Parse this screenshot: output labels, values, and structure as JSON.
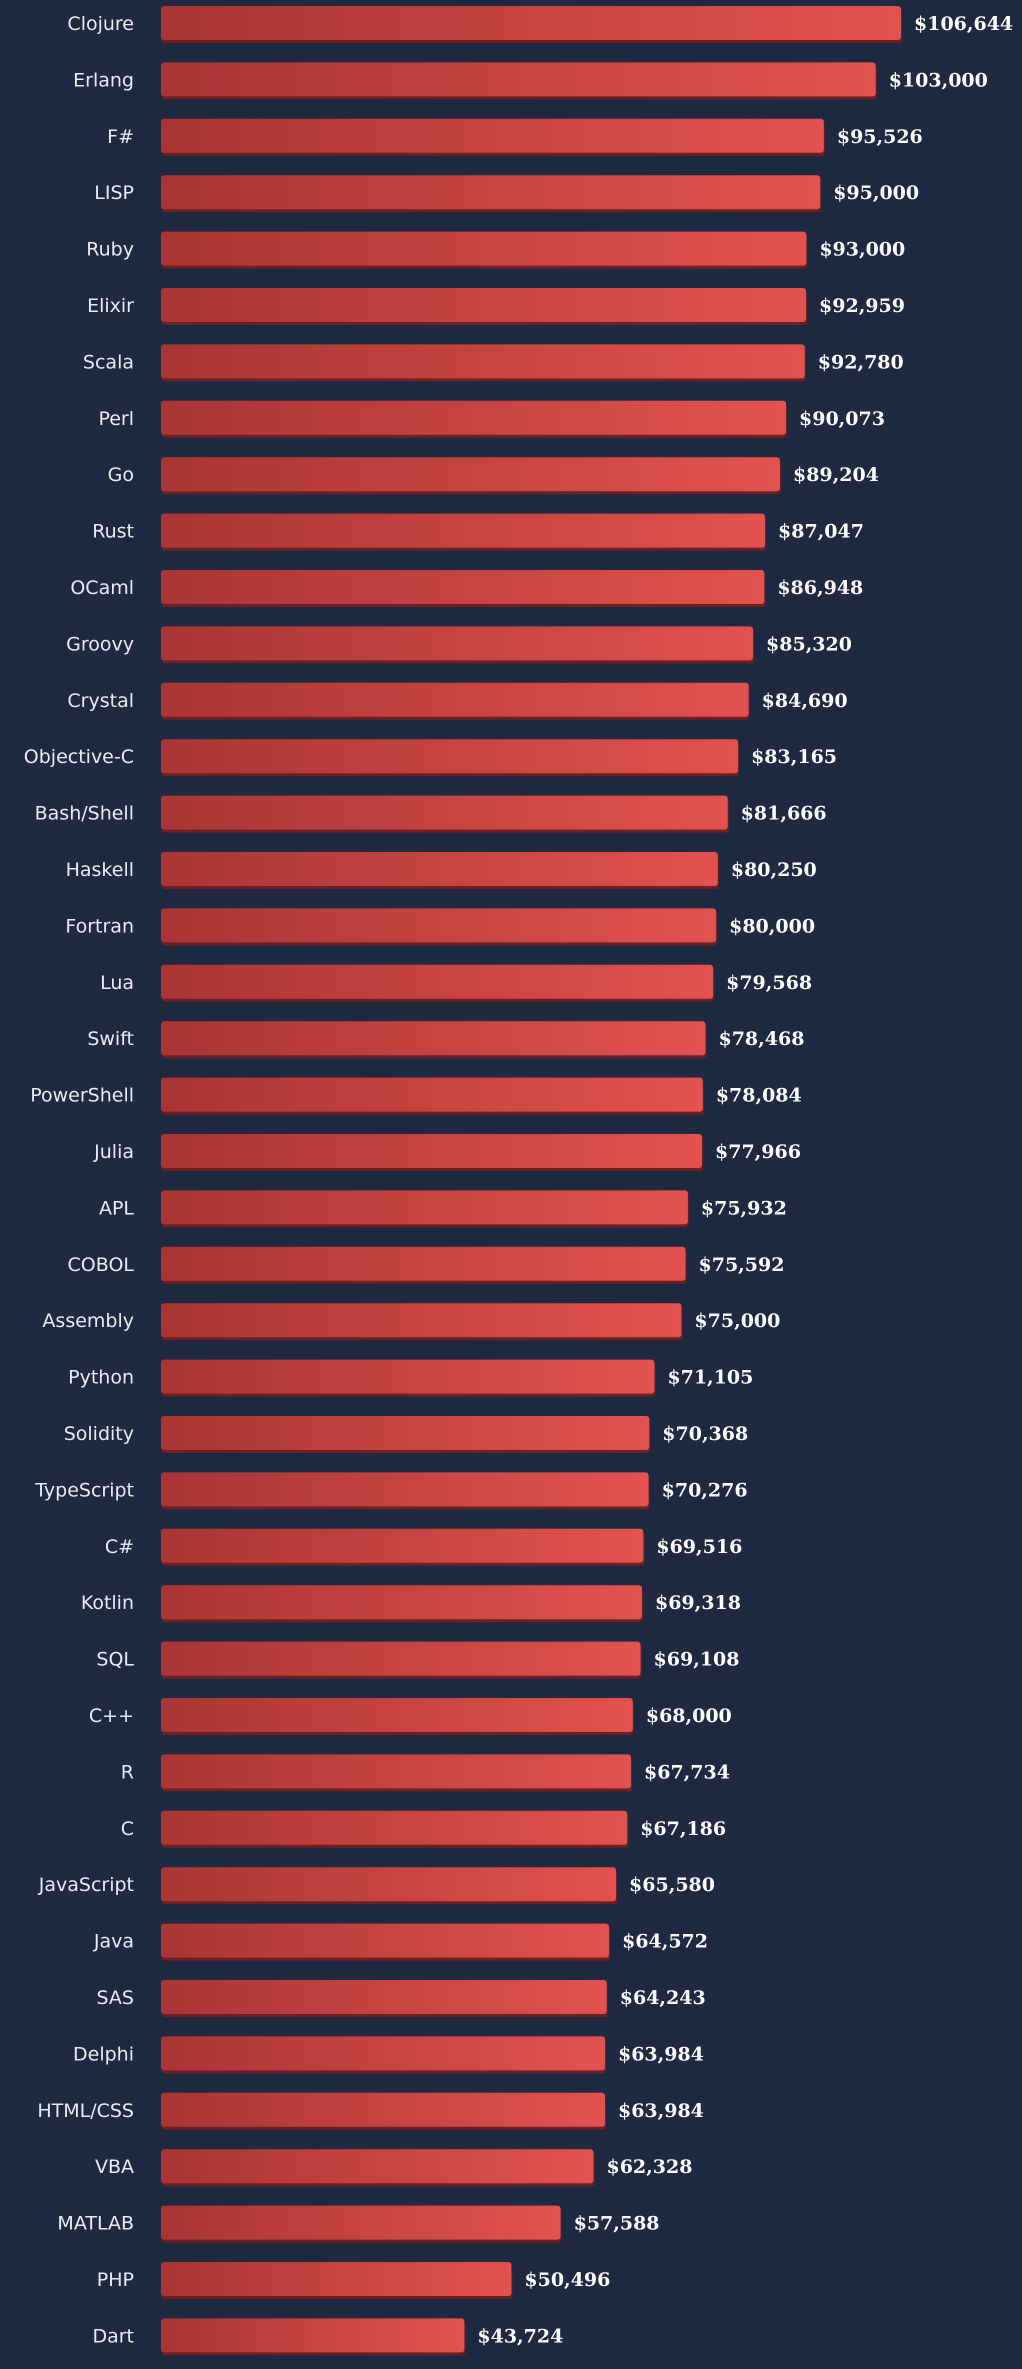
{
  "chart_data": {
    "type": "bar",
    "orientation": "horizontal",
    "value_prefix": "$",
    "categories": [
      "Clojure",
      "Erlang",
      "F#",
      "LISP",
      "Ruby",
      "Elixir",
      "Scala",
      "Perl",
      "Go",
      "Rust",
      "OCaml",
      "Groovy",
      "Crystal",
      "Objective-C",
      "Bash/Shell",
      "Haskell",
      "Fortran",
      "Lua",
      "Swift",
      "PowerShell",
      "Julia",
      "APL",
      "COBOL",
      "Assembly",
      "Python",
      "Solidity",
      "TypeScript",
      "C#",
      "Kotlin",
      "SQL",
      "C++",
      "R",
      "C",
      "JavaScript",
      "Java",
      "SAS",
      "Delphi",
      "HTML/CSS",
      "VBA",
      "MATLAB",
      "PHP",
      "Dart"
    ],
    "values": [
      106644,
      103000,
      95526,
      95000,
      93000,
      92959,
      92780,
      90073,
      89204,
      87047,
      86948,
      85320,
      84690,
      83165,
      81666,
      80250,
      80000,
      79568,
      78468,
      78084,
      77966,
      75932,
      75592,
      75000,
      71105,
      70368,
      70276,
      69516,
      69318,
      69108,
      68000,
      67734,
      67186,
      65580,
      64572,
      64243,
      63984,
      63984,
      62328,
      57588,
      50496,
      43724
    ],
    "value_labels": [
      "$106,644",
      "$103,000",
      "$95,526",
      "$95,000",
      "$93,000",
      "$92,959",
      "$92,780",
      "$90,073",
      "$89,204",
      "$87,047",
      "$86,948",
      "$85,320",
      "$84,690",
      "$83,165",
      "$81,666",
      "$80,250",
      "$80,000",
      "$79,568",
      "$78,468",
      "$78,084",
      "$77,966",
      "$75,932",
      "$75,592",
      "$75,000",
      "$71,105",
      "$70,368",
      "$70,276",
      "$69,516",
      "$69,318",
      "$69,108",
      "$68,000",
      "$67,734",
      "$67,186",
      "$65,580",
      "$64,572",
      "$64,243",
      "$63,984",
      "$63,984",
      "$62,328",
      "$57,588",
      "$50,496",
      "$43,724"
    ],
    "colors": {
      "background": "#1f2a42",
      "bar_start": "#a93534",
      "bar_end": "#e2524f",
      "bar_shadow": "#6e1f22",
      "label": "#e9ecf2",
      "value": "#ffffff"
    },
    "grid": false,
    "legend": "none"
  }
}
